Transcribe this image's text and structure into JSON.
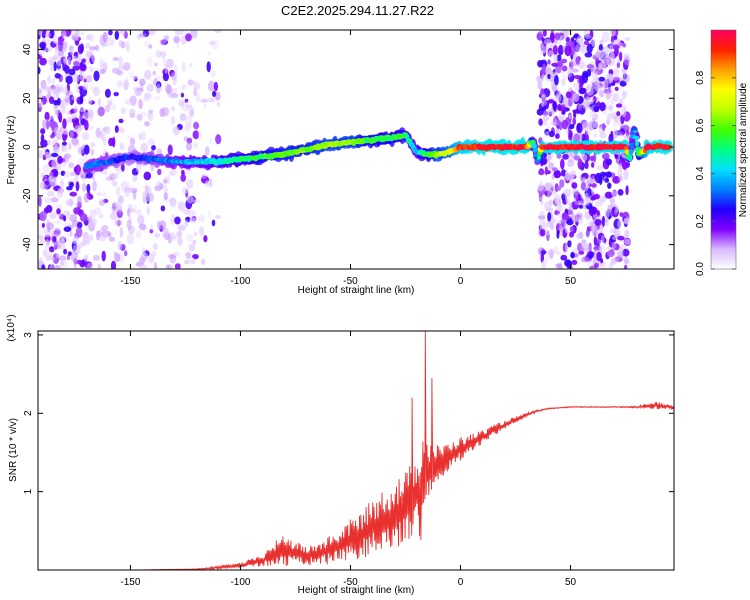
{
  "title": "C2E2.2025.294.11.27.R22",
  "chart_data": [
    {
      "type": "heatmap",
      "xlabel": "Height of straight line (km)",
      "ylabel": "Frequency (Hz)",
      "xlim": [
        -192,
        97
      ],
      "ylim": [
        -50,
        48
      ],
      "xticks": [
        -150,
        -100,
        -50,
        0,
        50
      ],
      "yticks": [
        -40,
        -20,
        0,
        20,
        40
      ],
      "colorbar": {
        "label": "Normalized spectral amplitude",
        "range": [
          0.0,
          1.0
        ],
        "ticks": [
          0.0,
          0.2,
          0.4,
          0.6,
          0.8
        ],
        "colors": [
          "#ffffff",
          "#d8b8ff",
          "#8000ff",
          "#2000ff",
          "#0080ff",
          "#00e0ff",
          "#00ff80",
          "#40ff00",
          "#c0ff00",
          "#ffff00",
          "#ffa000",
          "#ff2000",
          "#ff0060"
        ]
      },
      "signal_track": {
        "x": [
          -170,
          -160,
          -150,
          -140,
          -130,
          -120,
          -110,
          -100,
          -90,
          -80,
          -70,
          -60,
          -50,
          -40,
          -30,
          -25,
          -20,
          -15,
          -10,
          -5,
          0,
          10,
          20,
          30,
          33,
          35,
          37,
          40,
          50,
          60,
          70,
          75,
          77,
          79,
          81,
          85,
          95
        ],
        "y": [
          -8,
          -6,
          -4,
          -5,
          -6,
          -6,
          -6,
          -5,
          -4,
          -3,
          -1,
          1,
          2,
          3,
          4,
          5,
          -2,
          -3,
          -3,
          -2,
          0,
          0,
          0,
          0,
          2,
          -6,
          0,
          0,
          0,
          0,
          0,
          0,
          -5,
          8,
          -3,
          0,
          0
        ],
        "amplitude": [
          0.35,
          0.3,
          0.25,
          0.3,
          0.35,
          0.4,
          0.45,
          0.5,
          0.55,
          0.6,
          0.6,
          0.65,
          0.65,
          0.55,
          0.55,
          0.5,
          0.4,
          0.55,
          0.65,
          0.7,
          0.9,
          0.95,
          0.95,
          0.95,
          0.5,
          0.3,
          0.9,
          0.95,
          0.95,
          0.95,
          0.95,
          0.95,
          0.4,
          0.35,
          0.5,
          0.95,
          0.95
        ]
      },
      "noise_regions": [
        {
          "x": [
            -192,
            -170
          ],
          "density": 0.8
        },
        {
          "x": [
            -170,
            -120
          ],
          "density": 0.35
        },
        {
          "x": [
            -120,
            -110
          ],
          "density": 0.15
        },
        {
          "x": [
            36,
            76
          ],
          "density": 0.9
        }
      ]
    },
    {
      "type": "line",
      "xlabel": "Height of straight line (km)",
      "ylabel": "SNR (10 * v/v)",
      "y_multiplier": "(x10⁴)",
      "xlim": [
        -192,
        97
      ],
      "ylim": [
        0,
        3.05
      ],
      "xticks": [
        -150,
        -100,
        -50,
        0,
        50
      ],
      "yticks": [
        1,
        2,
        3
      ],
      "series": [
        {
          "color": "#e8302e",
          "x": [
            -192,
            -150,
            -120,
            -110,
            -100,
            -90,
            -85,
            -80,
            -75,
            -70,
            -65,
            -60,
            -55,
            -50,
            -45,
            -40,
            -35,
            -30,
            -25,
            -20,
            -18,
            -15,
            -10,
            -5,
            0,
            5,
            10,
            15,
            20,
            25,
            30,
            35,
            40,
            45,
            50,
            60,
            70,
            80,
            85,
            88,
            90,
            92,
            95,
            97
          ],
          "y": [
            0.0,
            0.0,
            0.01,
            0.03,
            0.06,
            0.12,
            0.2,
            0.25,
            0.22,
            0.18,
            0.2,
            0.25,
            0.3,
            0.38,
            0.45,
            0.55,
            0.62,
            0.7,
            0.8,
            0.95,
            1.1,
            1.25,
            1.35,
            1.45,
            1.55,
            1.62,
            1.7,
            1.78,
            1.85,
            1.92,
            1.98,
            2.03,
            2.06,
            2.07,
            2.08,
            2.08,
            2.08,
            2.08,
            2.09,
            2.1,
            2.1,
            2.09,
            2.08,
            2.07
          ],
          "spread": [
            0.0,
            0.0,
            0.01,
            0.03,
            0.06,
            0.12,
            0.25,
            0.35,
            0.25,
            0.2,
            0.25,
            0.3,
            0.35,
            0.45,
            0.5,
            0.6,
            0.7,
            0.75,
            0.75,
            0.9,
            1.2,
            0.75,
            0.4,
            0.3,
            0.25,
            0.2,
            0.15,
            0.12,
            0.1,
            0.06,
            0.04,
            0.02,
            0.01,
            0.01,
            0.01,
            0.01,
            0.01,
            0.02,
            0.06,
            0.08,
            0.08,
            0.06,
            0.06,
            0.05
          ]
        }
      ],
      "spikes": [
        {
          "x": -16,
          "y": 3.05
        },
        {
          "x": -22,
          "y": 2.2
        },
        {
          "x": -13,
          "y": 2.45
        }
      ]
    }
  ]
}
